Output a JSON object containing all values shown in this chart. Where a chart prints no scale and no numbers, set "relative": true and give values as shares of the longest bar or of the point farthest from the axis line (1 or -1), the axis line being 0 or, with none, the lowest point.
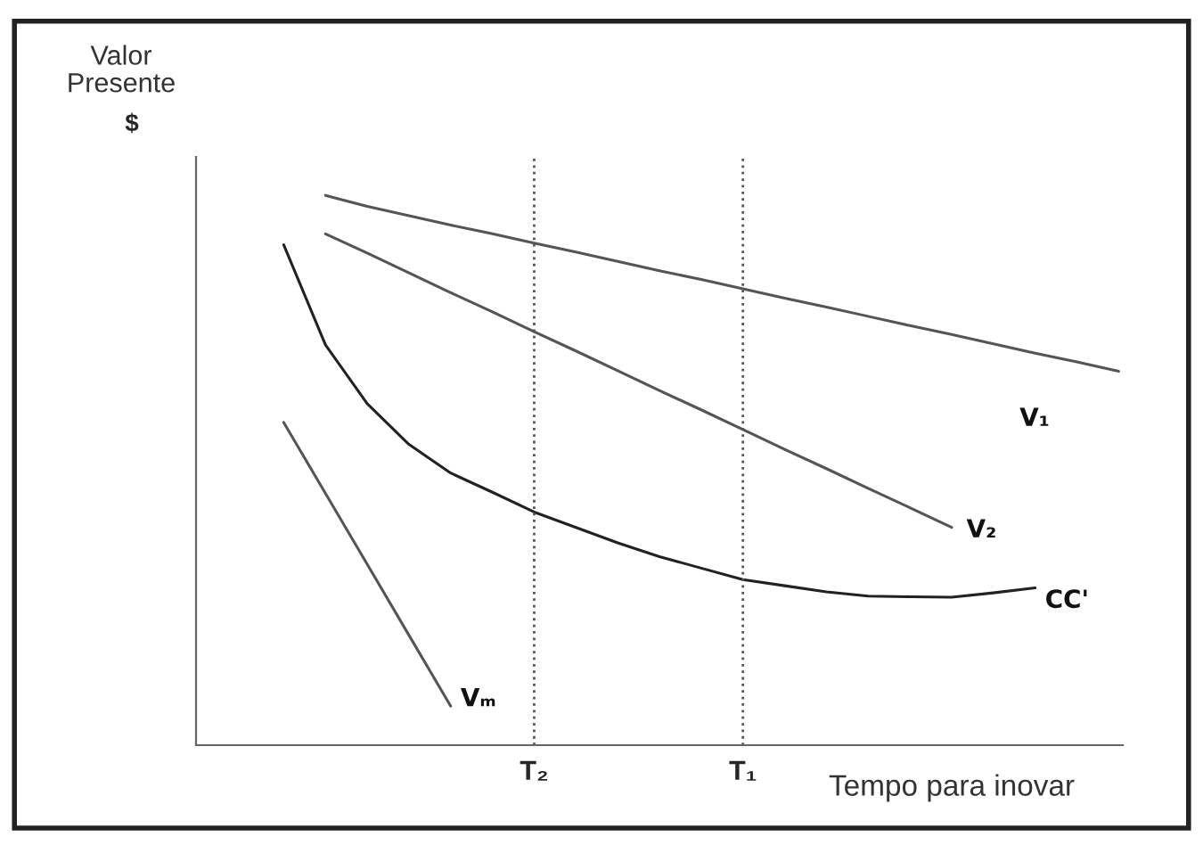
{
  "chart_data": {
    "type": "line",
    "relative": true,
    "ylabel": "Valor Presente",
    "xlabel": "Tempo para inovar",
    "annotations": [
      "$"
    ],
    "categories": [
      null,
      null,
      null,
      null,
      null,
      null,
      null,
      null,
      "T₂",
      null,
      null,
      null,
      null,
      "T₁",
      null,
      null,
      null,
      null,
      null,
      null,
      null,
      null,
      null
    ],
    "ref_lines": [
      {
        "axis": "x",
        "value": "T₂",
        "color": "#555555",
        "line_style": "dotted"
      },
      {
        "axis": "x",
        "value": "T₁",
        "color": "#555555",
        "line_style": "dotted"
      }
    ],
    "series": [
      {
        "name": "V₁",
        "color": "#555555",
        "values": [
          null,
          null,
          null,
          1.0,
          0.98,
          0.963,
          0.946,
          0.93,
          0.913,
          0.897,
          0.88,
          0.863,
          0.847,
          0.83,
          0.813,
          0.797,
          0.78,
          0.763,
          0.747,
          0.73,
          0.713,
          0.697,
          0.68
        ]
      },
      {
        "name": "V₂",
        "color": "#555555",
        "values": [
          null,
          null,
          null,
          0.93,
          0.895,
          0.859,
          0.823,
          0.788,
          0.752,
          0.717,
          0.681,
          0.645,
          0.61,
          0.574,
          0.538,
          0.503,
          0.467,
          0.432,
          0.396,
          null,
          null,
          null,
          null
        ]
      },
      {
        "name": "CC'",
        "color": "#222222",
        "values": [
          null,
          null,
          0.91,
          0.728,
          0.621,
          0.547,
          0.495,
          0.46,
          0.424,
          0.396,
          0.368,
          0.343,
          0.322,
          0.301,
          0.29,
          0.279,
          0.271,
          0.27,
          0.269,
          0.277,
          0.286,
          null,
          null
        ]
      },
      {
        "name": "Vₘ",
        "color": "#555555",
        "values": [
          null,
          null,
          0.587,
          0.458,
          0.329,
          0.2,
          0.071,
          null,
          null,
          null,
          null,
          null,
          null,
          null,
          null,
          null,
          null,
          null,
          null,
          null,
          null,
          null,
          null
        ]
      }
    ]
  }
}
